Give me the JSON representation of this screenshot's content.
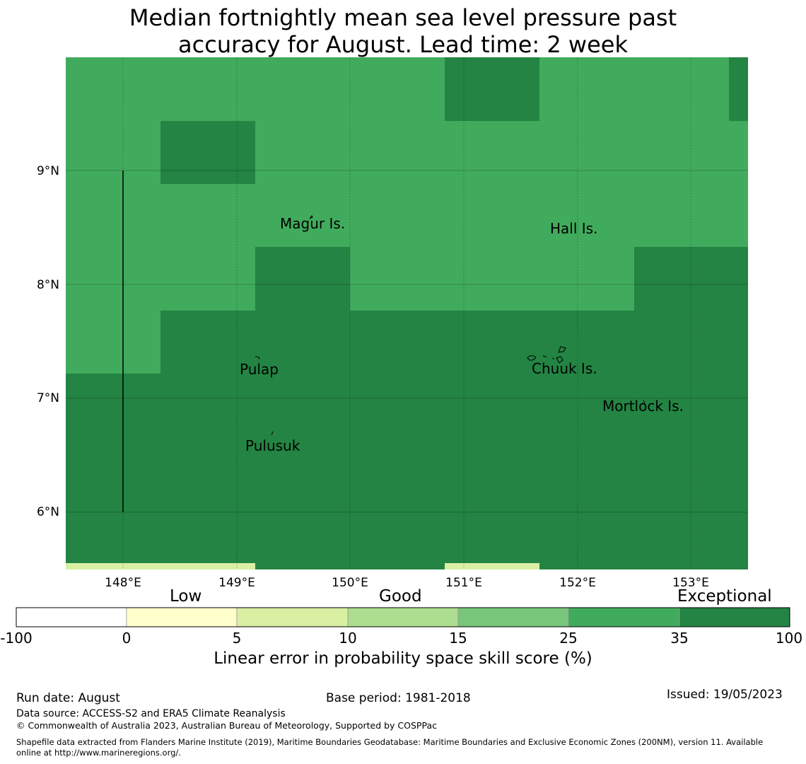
{
  "title": {
    "line1": "Median fortnightly mean sea level pressure past",
    "line2": "accuracy for August. Lead time: 2 week"
  },
  "map": {
    "lon_ticks": [
      "148°E",
      "149°E",
      "150°E",
      "151°E",
      "152°E",
      "153°E"
    ],
    "lat_ticks": [
      "9°N",
      "8°N",
      "7°N",
      "6°N"
    ],
    "colors": {
      "category_25_35": "#41ab5d",
      "category_35_100": "#238443",
      "category_5_10": "#d9f0a3"
    },
    "islands": [
      {
        "name": "Magur Is.",
        "lon": 149.6,
        "lat": 8.6
      },
      {
        "name": "Hall Is.",
        "lon": 152.0,
        "lat": 8.55
      },
      {
        "name": "Pulap",
        "lon": 149.2,
        "lat": 7.35
      },
      {
        "name": "Chuuk Is.",
        "lon": 151.8,
        "lat": 7.4
      },
      {
        "name": "Mortlock Is.",
        "lon": 152.6,
        "lat": 7.0
      },
      {
        "name": "Pulusuk",
        "lon": 149.3,
        "lat": 6.7
      }
    ]
  },
  "colorbar": {
    "category_words": [
      "Low",
      "Good",
      "Exceptional"
    ],
    "tick_labels": [
      "-100",
      "0",
      "5",
      "10",
      "15",
      "25",
      "35",
      "100"
    ],
    "colors": [
      "#ffffff",
      "#ffffcc",
      "#d9f0a3",
      "#addd8e",
      "#78c679",
      "#41ab5d",
      "#238443"
    ],
    "label": "Linear error in probability space skill score (%)"
  },
  "footer": {
    "run_date": "Run date: August",
    "base_period": "Base period: 1981-2018",
    "issued": "Issued: 19/05/2023",
    "data_source": "Data source: ACCESS-S2 and ERA5 Climate Reanalysis",
    "copyright": "© Commonwealth of Australia 2023, Australian Bureau of Meteorology, Supported by COSPPac",
    "shapefile_line1": "Shapefile data extracted from Flanders Marine Institute (2019), Maritime Boundaries Geodatabase: Maritime Boundaries and Exclusive Economic Zones (200NM), version 11. Available",
    "shapefile_line2": "online at http://www.marineregions.org/."
  }
}
